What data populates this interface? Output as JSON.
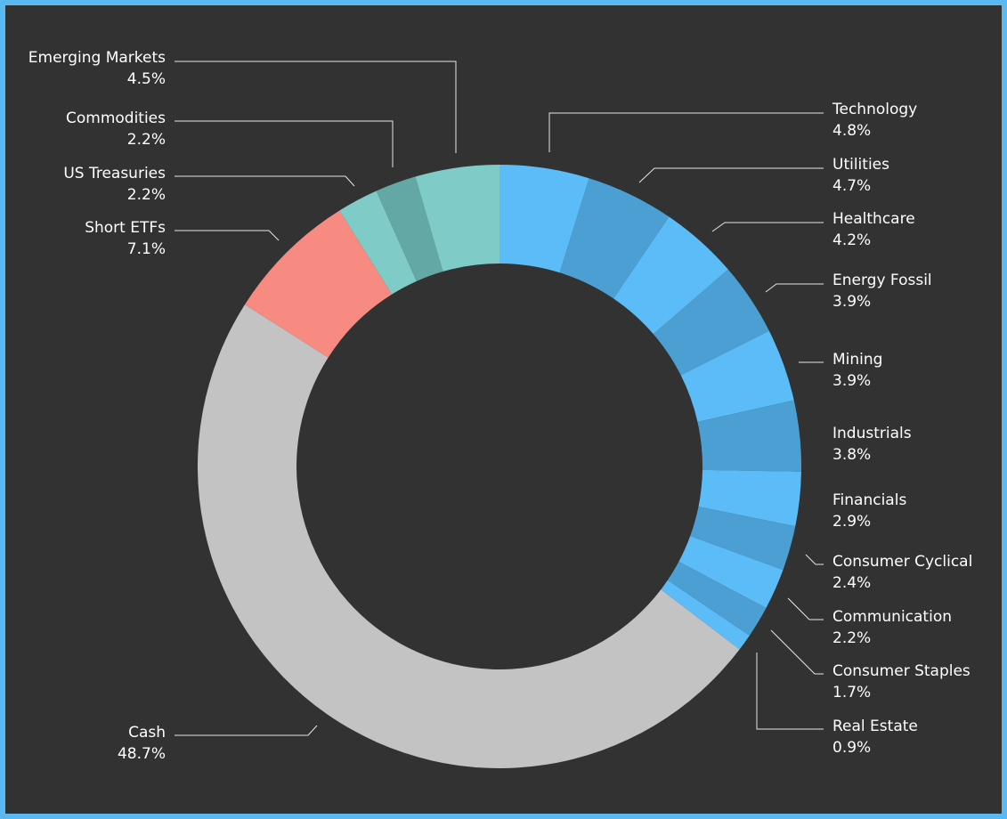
{
  "chart_data": {
    "type": "pie",
    "variant": "donut",
    "title": "",
    "slices": [
      {
        "label": "Technology",
        "value_text": "4.8%",
        "value": 4.8,
        "color": "#5bbcf7"
      },
      {
        "label": "Utilities",
        "value_text": "4.7%",
        "value": 4.7,
        "color": "#4b9fd2"
      },
      {
        "label": "Healthcare",
        "value_text": "4.2%",
        "value": 4.2,
        "color": "#5bbcf7"
      },
      {
        "label": "Energy Fossil",
        "value_text": "3.9%",
        "value": 3.9,
        "color": "#4b9fd2"
      },
      {
        "label": "Mining",
        "value_text": "3.9%",
        "value": 3.9,
        "color": "#5bbcf7"
      },
      {
        "label": "Industrials",
        "value_text": "3.8%",
        "value": 3.8,
        "color": "#4b9fd2"
      },
      {
        "label": "Financials",
        "value_text": "2.9%",
        "value": 2.9,
        "color": "#5bbcf7"
      },
      {
        "label": "Consumer Cyclical",
        "value_text": "2.4%",
        "value": 2.4,
        "color": "#4b9fd2"
      },
      {
        "label": "Communication",
        "value_text": "2.2%",
        "value": 2.2,
        "color": "#5bbcf7"
      },
      {
        "label": "Consumer Staples",
        "value_text": "1.7%",
        "value": 1.7,
        "color": "#4b9fd2"
      },
      {
        "label": "Real Estate",
        "value_text": "0.9%",
        "value": 0.9,
        "color": "#5bbcf7"
      },
      {
        "label": "Cash",
        "value_text": "48.7%",
        "value": 48.7,
        "color": "#c3c3c3"
      },
      {
        "label": "Short ETFs",
        "value_text": "7.1%",
        "value": 7.1,
        "color": "#f78b81"
      },
      {
        "label": "US Treasuries",
        "value_text": "2.2%",
        "value": 2.2,
        "color": "#7ecbc7"
      },
      {
        "label": "Commodities",
        "value_text": "2.2%",
        "value": 2.2,
        "color": "#64a8a5"
      },
      {
        "label": "Emerging Markets",
        "value_text": "4.5%",
        "value": 4.5,
        "color": "#7ecbc7"
      }
    ],
    "background": "#323232",
    "frame_color": "#5ab9f0"
  }
}
